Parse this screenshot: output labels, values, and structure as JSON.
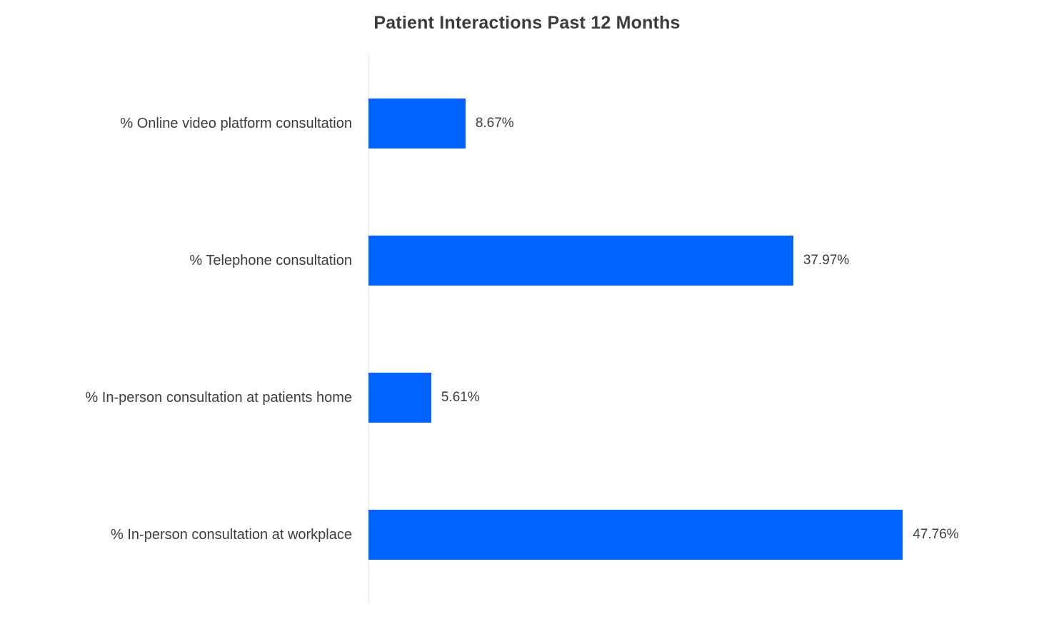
{
  "chart_data": {
    "type": "bar",
    "orientation": "horizontal",
    "title": "Patient Interactions Past 12 Months",
    "categories": [
      "% Online video platform consultation",
      "% Telephone consultation",
      "% In-person consultation at patients home",
      "% In-person consultation at workplace"
    ],
    "values": [
      8.67,
      37.97,
      5.61,
      47.76
    ],
    "value_labels": [
      "8.67%",
      "37.97%",
      "5.61%",
      "47.76%"
    ],
    "xlabel": "",
    "ylabel": "",
    "xlim": [
      0,
      60
    ],
    "grid": false,
    "legend": false,
    "bar_color": "#0062ff",
    "axis_line_color": "#e4e4e4",
    "text_color": "#3c3c3b",
    "background_color": "#ffffff"
  }
}
